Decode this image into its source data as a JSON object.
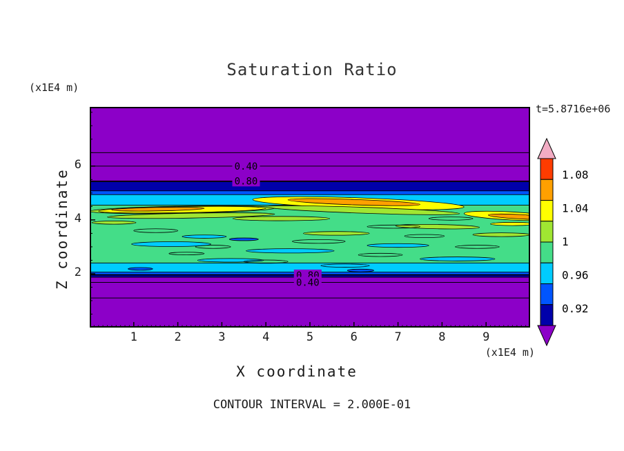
{
  "chart_data": {
    "type": "heatmap",
    "title": "Saturation Ratio",
    "xlabel": "X coordinate",
    "ylabel": "Z coordinate",
    "x_unit_label": "(x1E4 m)",
    "z_unit_label": "(x1E4 m)",
    "time_annotation": "t=5.8716e+06",
    "contour_interval_annotation": "CONTOUR INTERVAL = 2.000E-01",
    "xlim": [
      0,
      10
    ],
    "zlim": [
      0,
      8.2
    ],
    "x_ticks": [
      1,
      2,
      3,
      4,
      5,
      6,
      7,
      8,
      9
    ],
    "y_ticks": [
      2,
      4,
      6
    ],
    "legend_position": "right",
    "grid": false,
    "colorbar": {
      "vmin": 0.9,
      "vmax": 1.1,
      "segments": [
        "#FF3C00",
        "#FFA000",
        "#FFFF00",
        "#A0E632",
        "#44DD88",
        "#00CCFF",
        "#0055FF",
        "#0000AA"
      ],
      "above_color": "#F2ACC4",
      "below_color": "#8C00C8",
      "labels": [
        {
          "text": "1.08",
          "value": 1.08
        },
        {
          "text": "1.04",
          "value": 1.04
        },
        {
          "text": "1",
          "value": 1.0
        },
        {
          "text": "0.96",
          "value": 0.96
        },
        {
          "text": "0.92",
          "value": 0.92
        }
      ]
    },
    "field": {
      "background": "#8C00C8",
      "bands": [
        {
          "z0": 2.0,
          "z1": 4.92,
          "color": "#44DD88"
        },
        {
          "z0": 5.07,
          "z1": 5.42,
          "color": "#0000AA"
        },
        {
          "z0": 4.93,
          "z1": 5.08,
          "color": "#0055FF"
        },
        {
          "z0": 4.55,
          "z1": 4.94,
          "color": "#00CCFF"
        },
        {
          "z0": 2.05,
          "z1": 2.4,
          "color": "#00CCFF"
        },
        {
          "z0": 1.96,
          "z1": 2.06,
          "color": "#0055FF"
        },
        {
          "z0": 1.87,
          "z1": 1.97,
          "color": "#0000AA"
        }
      ],
      "streaks": [
        {
          "cx": 2.1,
          "cz": 4.38,
          "rx": 2.1,
          "rz": 0.13,
          "rot": -1,
          "color": "#A0E632"
        },
        {
          "cx": 2.1,
          "cz": 4.38,
          "rx": 1.9,
          "rz": 0.11,
          "rot": -1,
          "color": "#FFFF00"
        },
        {
          "cx": 1.55,
          "cz": 4.4,
          "rx": 1.05,
          "rz": 0.065,
          "rot": -1,
          "color": "#FFA000"
        },
        {
          "cx": 2.3,
          "cz": 4.16,
          "rx": 1.9,
          "rz": 0.09,
          "rot": -1,
          "color": "#A0E632"
        },
        {
          "cx": 6.1,
          "cz": 4.62,
          "rx": 2.4,
          "rz": 0.2,
          "rot": 2,
          "color": "#FFFF00"
        },
        {
          "cx": 6.0,
          "cz": 4.66,
          "rx": 1.5,
          "rz": 0.1,
          "rot": 2,
          "color": "#FFA000"
        },
        {
          "cx": 6.2,
          "cz": 4.36,
          "rx": 2.2,
          "rz": 0.11,
          "rot": 2,
          "color": "#A0E632"
        },
        {
          "cx": 9.55,
          "cz": 4.15,
          "rx": 1.05,
          "rz": 0.15,
          "rot": 3,
          "color": "#FFFF00"
        },
        {
          "cx": 9.75,
          "cz": 4.12,
          "rx": 0.7,
          "rz": 0.08,
          "rot": 3,
          "color": "#FFA000"
        },
        {
          "cx": 4.35,
          "cz": 4.05,
          "rx": 1.1,
          "rz": 0.08,
          "rot": 0,
          "color": "#A0E632"
        },
        {
          "cx": 7.9,
          "cz": 3.75,
          "rx": 0.95,
          "rz": 0.08,
          "rot": 1,
          "color": "#A0E632"
        },
        {
          "cx": 5.6,
          "cz": 3.5,
          "rx": 0.75,
          "rz": 0.07,
          "rot": 0,
          "color": "#A0E632"
        },
        {
          "cx": 9.35,
          "cz": 3.45,
          "rx": 0.65,
          "rz": 0.07,
          "rot": 0,
          "color": "#A0E632"
        },
        {
          "cx": 9.6,
          "cz": 3.85,
          "rx": 0.5,
          "rz": 0.06,
          "rot": 0,
          "color": "#FFFF00"
        },
        {
          "cx": 0.55,
          "cz": 3.9,
          "rx": 0.5,
          "rz": 0.06,
          "rot": 0,
          "color": "#A0E632"
        },
        {
          "cx": 1.85,
          "cz": 3.1,
          "rx": 0.9,
          "rz": 0.09,
          "rot": 0,
          "color": "#00CCFF"
        },
        {
          "cx": 4.55,
          "cz": 2.85,
          "rx": 1.0,
          "rz": 0.08,
          "rot": 0,
          "color": "#00CCFF"
        },
        {
          "cx": 7.0,
          "cz": 3.05,
          "rx": 0.7,
          "rz": 0.07,
          "rot": 0,
          "color": "#00CCFF"
        },
        {
          "cx": 3.2,
          "cz": 2.5,
          "rx": 0.75,
          "rz": 0.065,
          "rot": 0,
          "color": "#00CCFF"
        },
        {
          "cx": 8.35,
          "cz": 2.55,
          "rx": 0.85,
          "rz": 0.075,
          "rot": 0,
          "color": "#00CCFF"
        },
        {
          "cx": 5.8,
          "cz": 2.3,
          "rx": 0.55,
          "rz": 0.06,
          "rot": 0,
          "color": "#00CCFF"
        },
        {
          "cx": 2.6,
          "cz": 3.38,
          "rx": 0.5,
          "rz": 0.06,
          "rot": 0,
          "color": "#00CCFF"
        },
        {
          "cx": 3.5,
          "cz": 3.28,
          "rx": 0.33,
          "rz": 0.05,
          "rot": 0,
          "color": "#0055FF"
        },
        {
          "cx": 6.15,
          "cz": 2.12,
          "rx": 0.3,
          "rz": 0.05,
          "rot": 0,
          "color": "#0055FF"
        },
        {
          "cx": 1.15,
          "cz": 2.18,
          "rx": 0.28,
          "rz": 0.05,
          "rot": 0,
          "color": "#0055FF"
        },
        {
          "cx": 1.5,
          "cz": 3.6,
          "rx": 0.5,
          "rz": 0.07,
          "rot": 0,
          "color": null
        },
        {
          "cx": 2.8,
          "cz": 3.0,
          "rx": 0.4,
          "rz": 0.06,
          "rot": 0,
          "color": null
        },
        {
          "cx": 5.2,
          "cz": 3.2,
          "rx": 0.6,
          "rz": 0.07,
          "rot": 0,
          "color": null
        },
        {
          "cx": 6.6,
          "cz": 2.7,
          "rx": 0.5,
          "rz": 0.06,
          "rot": 0,
          "color": null
        },
        {
          "cx": 7.6,
          "cz": 3.4,
          "rx": 0.45,
          "rz": 0.06,
          "rot": 0,
          "color": null
        },
        {
          "cx": 8.8,
          "cz": 3.0,
          "rx": 0.5,
          "rz": 0.06,
          "rot": 0,
          "color": null
        },
        {
          "cx": 4.0,
          "cz": 2.45,
          "rx": 0.5,
          "rz": 0.06,
          "rot": 0,
          "color": null
        },
        {
          "cx": 2.2,
          "cz": 2.75,
          "rx": 0.4,
          "rz": 0.05,
          "rot": 0,
          "color": null
        },
        {
          "cx": 6.9,
          "cz": 3.75,
          "rx": 0.6,
          "rz": 0.06,
          "rot": 0,
          "color": null
        },
        {
          "cx": 8.2,
          "cz": 4.05,
          "rx": 0.5,
          "rz": 0.06,
          "rot": 0,
          "color": null
        }
      ],
      "lines": [
        {
          "z": 6.5
        },
        {
          "z": 6.0
        },
        {
          "z": 5.45
        },
        {
          "z": 1.95
        },
        {
          "z": 1.68
        },
        {
          "z": 1.1
        }
      ],
      "labels": [
        {
          "text": "0.40",
          "x": 3.55,
          "z": 6.0
        },
        {
          "text": "0.80",
          "x": 3.55,
          "z": 5.45
        },
        {
          "text": "0.80",
          "x": 4.95,
          "z": 1.95
        },
        {
          "text": "0.40",
          "x": 4.95,
          "z": 1.68
        }
      ]
    }
  }
}
